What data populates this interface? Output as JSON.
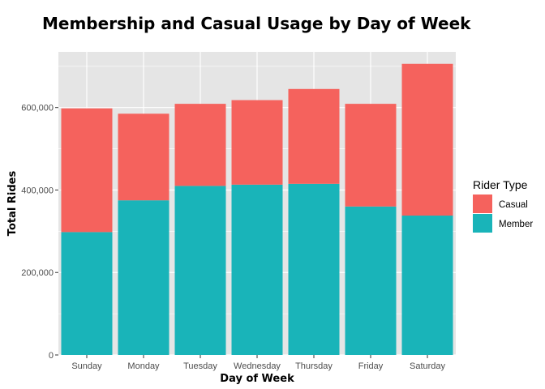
{
  "chart_data": {
    "type": "bar",
    "stacked": true,
    "title": "Membership and Casual Usage by Day of Week",
    "xlabel": "Day of Week",
    "ylabel": "Total Rides",
    "categories": [
      "Sunday",
      "Monday",
      "Tuesday",
      "Wednesday",
      "Thursday",
      "Friday",
      "Saturday"
    ],
    "series": [
      {
        "name": "Member",
        "color": "#19b4b9",
        "values": [
          298000,
          375000,
          410000,
          413000,
          415000,
          360000,
          338000
        ]
      },
      {
        "name": "Casual",
        "color": "#f5625d",
        "values": [
          300000,
          210000,
          199000,
          205000,
          230000,
          249000,
          368000
        ]
      }
    ],
    "ylim": [
      0,
      735000
    ],
    "yticks": [
      0,
      200000,
      400000,
      600000
    ],
    "ytick_labels": [
      "0",
      "200,000",
      "400,000",
      "600,000"
    ],
    "grid": true,
    "legend": {
      "title": "Rider Type",
      "position": "right",
      "entries": [
        {
          "label": "Casual",
          "color": "#f5625d"
        },
        {
          "label": "Member",
          "color": "#19b4b9"
        }
      ]
    },
    "panel_background": "#e5e5e5",
    "grid_color": "#ffffff"
  }
}
